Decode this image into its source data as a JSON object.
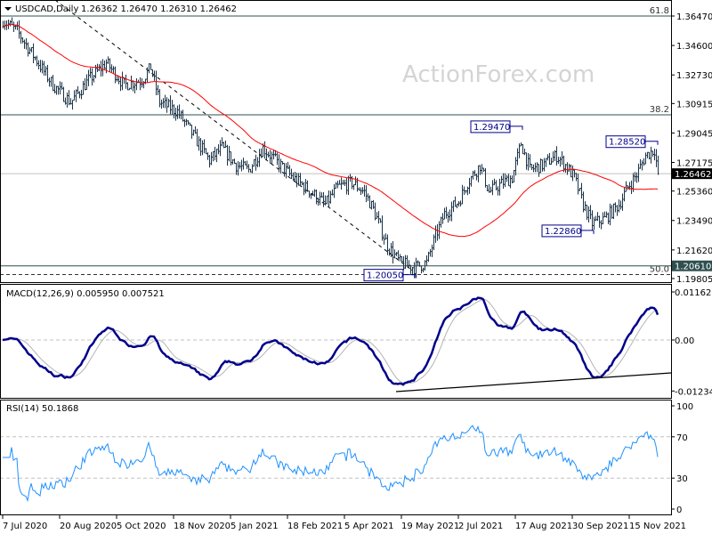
{
  "header": {
    "symbol_label": "USDCAD,Daily",
    "ohlc": "1.26362 1.26470 1.26310 1.26462"
  },
  "watermark": "ActionForex.com",
  "chart_data": [
    {
      "type": "line",
      "panel": "price",
      "title": "USDCAD,Daily",
      "x_unit": "trading day index",
      "ylim": [
        1.19805,
        1.3684
      ],
      "y_ticks": [
        "1.36470",
        "1.34600",
        "1.32730",
        "1.30915",
        "1.29045",
        "1.27175",
        "1.25360",
        "1.23490",
        "1.21620",
        "1.19805"
      ],
      "y_tick_values": [
        1.3647,
        1.346,
        1.3273,
        1.30915,
        1.29045,
        1.27175,
        1.2536,
        1.2349,
        1.2162,
        1.19805
      ],
      "current_price": "1.26462",
      "current_price_value": 1.26462,
      "level_label": "1.20610",
      "level_value": 1.2061,
      "close_path": [
        [
          0,
          1.362
        ],
        [
          8,
          1.355
        ],
        [
          18,
          1.338
        ],
        [
          28,
          1.321
        ],
        [
          38,
          1.31
        ],
        [
          48,
          1.324
        ],
        [
          58,
          1.335
        ],
        [
          68,
          1.321
        ],
        [
          78,
          1.324
        ],
        [
          83,
          1.332
        ],
        [
          88,
          1.31
        ],
        [
          98,
          1.304
        ],
        [
          108,
          1.287
        ],
        [
          116,
          1.273
        ],
        [
          123,
          1.281
        ],
        [
          131,
          1.27
        ],
        [
          138,
          1.267
        ],
        [
          146,
          1.281
        ],
        [
          153,
          1.273
        ],
        [
          163,
          1.262
        ],
        [
          173,
          1.253
        ],
        [
          181,
          1.245
        ],
        [
          188,
          1.256
        ],
        [
          196,
          1.259
        ],
        [
          203,
          1.253
        ],
        [
          208,
          1.242
        ],
        [
          216,
          1.219
        ],
        [
          223,
          1.208
        ],
        [
          231,
          1.205
        ],
        [
          238,
          1.208
        ],
        [
          243,
          1.225
        ],
        [
          248,
          1.239
        ],
        [
          256,
          1.247
        ],
        [
          261,
          1.259
        ],
        [
          268,
          1.27
        ],
        [
          273,
          1.253
        ],
        [
          281,
          1.259
        ],
        [
          286,
          1.262
        ],
        [
          291,
          1.284
        ],
        [
          296,
          1.267
        ],
        [
          303,
          1.27
        ],
        [
          311,
          1.276
        ],
        [
          316,
          1.27
        ],
        [
          321,
          1.262
        ],
        [
          326,
          1.245
        ],
        [
          331,
          1.233
        ],
        [
          338,
          1.236
        ],
        [
          346,
          1.245
        ],
        [
          351,
          1.256
        ],
        [
          356,
          1.264
        ],
        [
          361,
          1.276
        ],
        [
          366,
          1.28
        ],
        [
          368,
          1.26462
        ]
      ],
      "moving_average_period": 55,
      "fib_levels": [
        {
          "label": "61.8",
          "value": 1.3647
        },
        {
          "label": "38.2",
          "value": 1.302
        },
        {
          "label": "50.0",
          "value": 1.2006
        }
      ],
      "annotations": [
        {
          "text": "1.29470",
          "value": 1.2947,
          "day": 290
        },
        {
          "text": "1.28520",
          "value": 1.2852,
          "day": 366
        },
        {
          "text": "1.22860",
          "value": 1.2286,
          "day": 330
        },
        {
          "text": "1.20050",
          "value": 1.2005,
          "day": 230
        }
      ],
      "x_ticks": [
        "7 Jul 2020",
        "20 Aug 2020",
        "5 Oct 2020",
        "18 Nov 2020",
        "5 Jan 2021",
        "18 Feb 2021",
        "5 Apr 2021",
        "19 May 2021",
        "2 Jul 2021",
        "17 Aug 2021",
        "30 Sep 2021",
        "15 Nov 2021"
      ],
      "x_tick_days": [
        0,
        32,
        64,
        96,
        128,
        160,
        192,
        224,
        256,
        288,
        320,
        352
      ]
    },
    {
      "type": "line",
      "panel": "macd",
      "title": "MACD(12,26,9) 0.005950 0.007521",
      "ylim": [
        -0.012348,
        0.011629
      ],
      "y_ticks": [
        "0.011629",
        "0.00",
        "-0.012348"
      ],
      "y_tick_values": [
        0.011629,
        0,
        -0.012348
      ]
    },
    {
      "type": "line",
      "panel": "rsi",
      "title": "RSI(14) 50.1868",
      "ylim": [
        0,
        100
      ],
      "y_ticks": [
        "100",
        "70",
        "30",
        "0"
      ],
      "y_tick_values": [
        100,
        70,
        30,
        0
      ]
    }
  ],
  "colors": {
    "bars": "#1c3448",
    "ma": "#ff0000",
    "macd": "#00008b",
    "signal": "#b4b4b4",
    "rsi": "#1e90ff",
    "grid": "#c0c0c0",
    "text": "#000000"
  }
}
